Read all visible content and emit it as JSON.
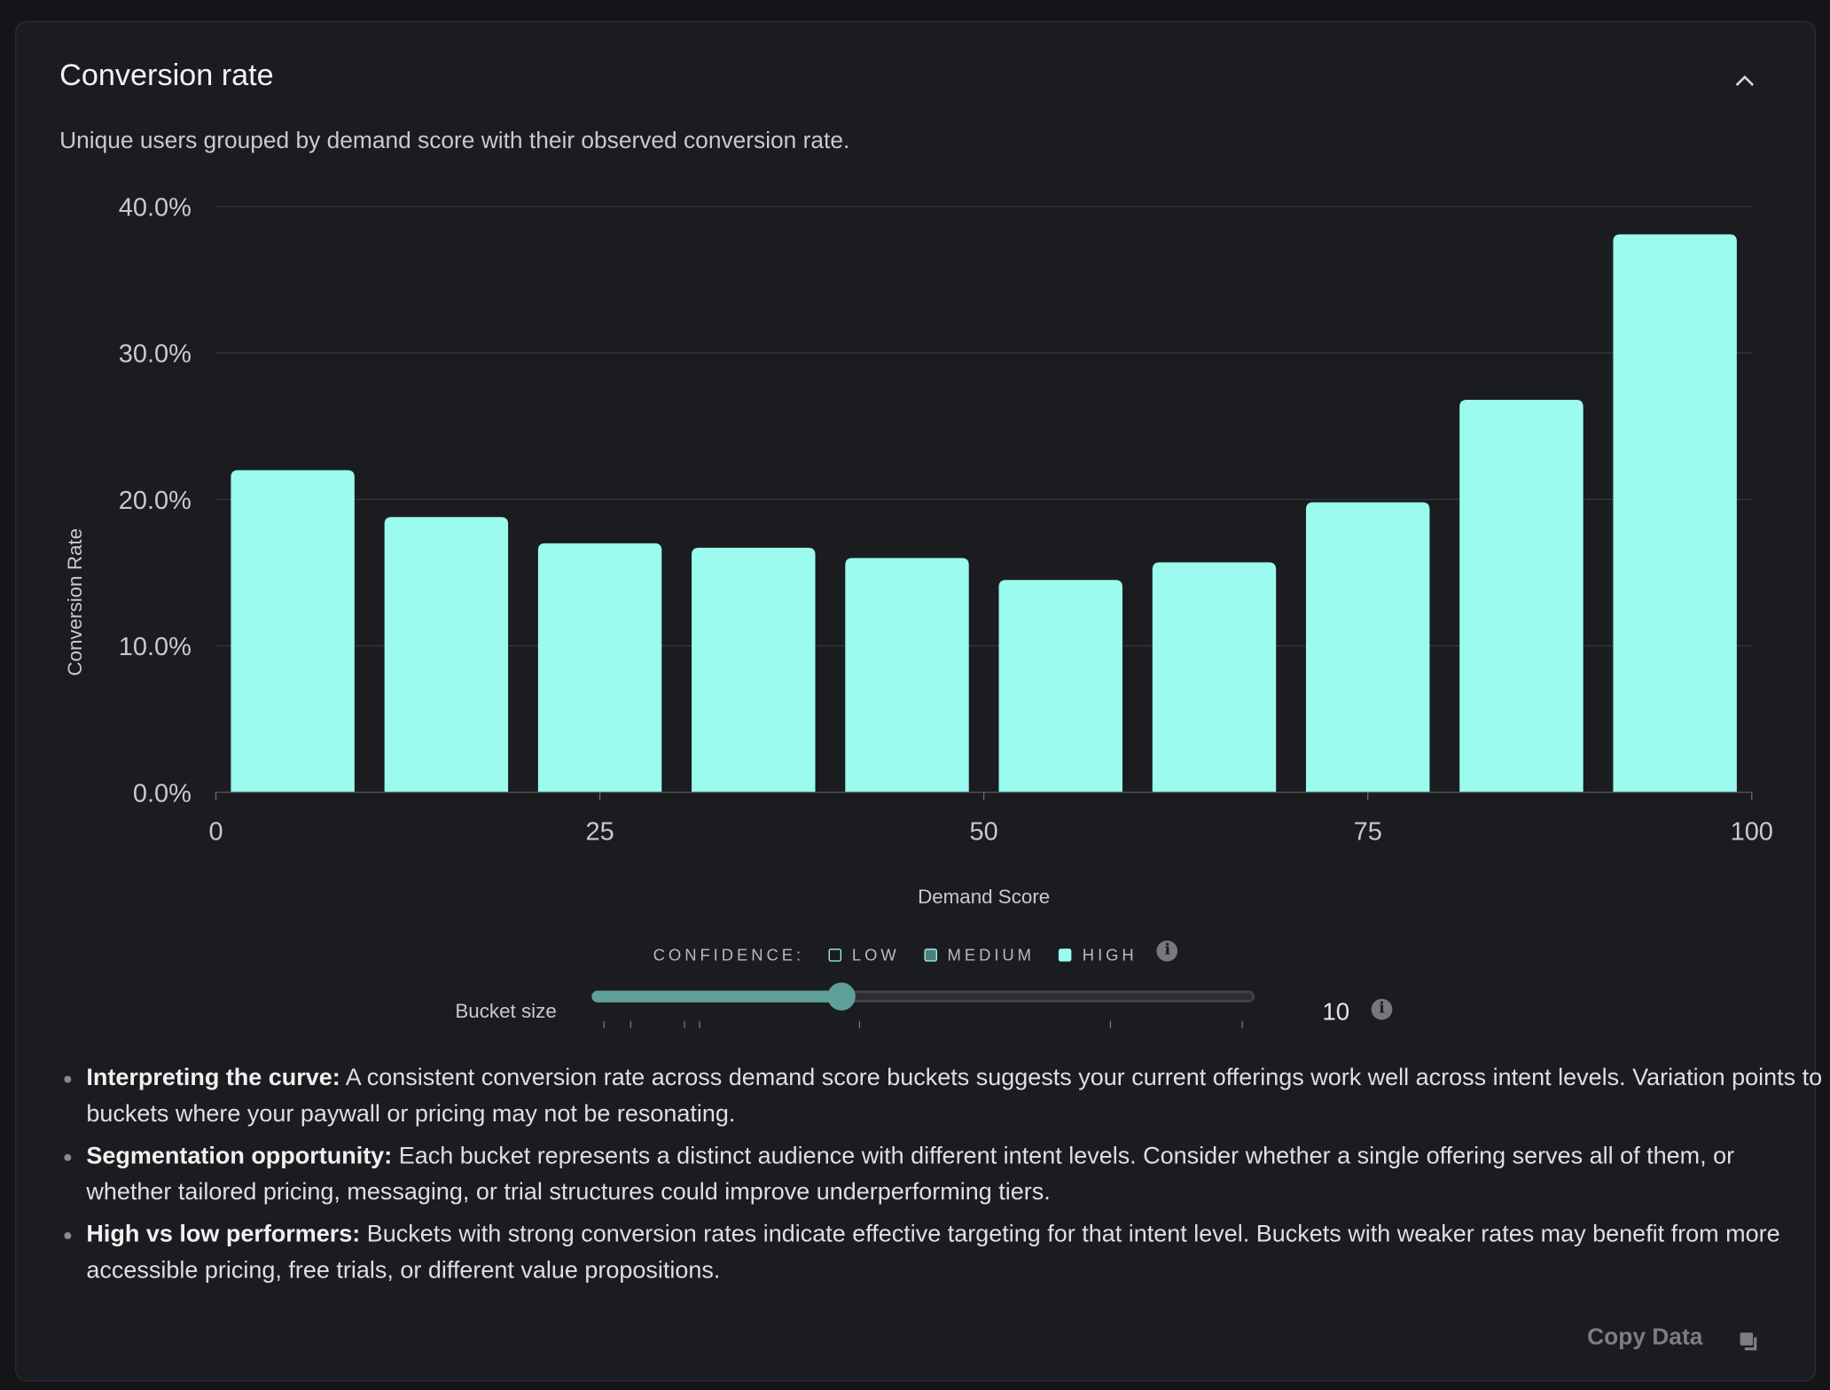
{
  "header": {
    "title": "Conversion rate",
    "subtitle": "Unique users grouped by demand score with their observed conversion rate.",
    "collapse_icon": "chevron-up-icon"
  },
  "chart_data": {
    "type": "bar",
    "xlabel": "Demand Score",
    "ylabel": "Conversion Rate",
    "x_ticks": [
      "0",
      "25",
      "50",
      "75",
      "100"
    ],
    "y_ticks": [
      "0.0%",
      "10.0%",
      "20.0%",
      "30.0%",
      "40.0%"
    ],
    "xlim": [
      0,
      100
    ],
    "ylim": [
      0,
      40
    ],
    "grid": true,
    "bins": [
      [
        0,
        10
      ],
      [
        10,
        20
      ],
      [
        20,
        30
      ],
      [
        30,
        40
      ],
      [
        40,
        50
      ],
      [
        50,
        60
      ],
      [
        60,
        70
      ],
      [
        70,
        80
      ],
      [
        80,
        90
      ],
      [
        90,
        100
      ]
    ],
    "values": [
      22.0,
      18.8,
      17.0,
      16.7,
      16.0,
      14.5,
      15.7,
      19.8,
      26.8,
      38.1
    ],
    "bar_color": "#9afbee"
  },
  "legend": {
    "label": "CONFIDENCE:",
    "items": [
      {
        "label": "LOW",
        "fill": "#1b1c20",
        "border": "#9afbee"
      },
      {
        "label": "MEDIUM",
        "fill": "#4e7f7a",
        "border": "#9afbee"
      },
      {
        "label": "HIGH",
        "fill": "#9afbee",
        "border": "#9afbee"
      }
    ]
  },
  "bucket": {
    "label": "Bucket size",
    "value": "10",
    "slider_fraction": 0.377
  },
  "notes": [
    {
      "title": "Interpreting the curve:",
      "text": " A consistent conversion rate across demand score buckets suggests your current offerings work well across intent levels. Variation points to buckets where your paywall or pricing may not be resonating."
    },
    {
      "title": "Segmentation opportunity:",
      "text": " Each bucket represents a distinct audience with different intent levels. Consider whether a single offering serves all of them, or whether tailored pricing, messaging, or trial structures could improve underperforming tiers."
    },
    {
      "title": "High vs low performers:",
      "text": " Buckets with strong conversion rates indicate effective targeting for that intent level. Buckets with weaker rates may benefit from more accessible pricing, free trials, or different value propositions."
    }
  ],
  "footer": {
    "copy_label": "Copy Data"
  }
}
